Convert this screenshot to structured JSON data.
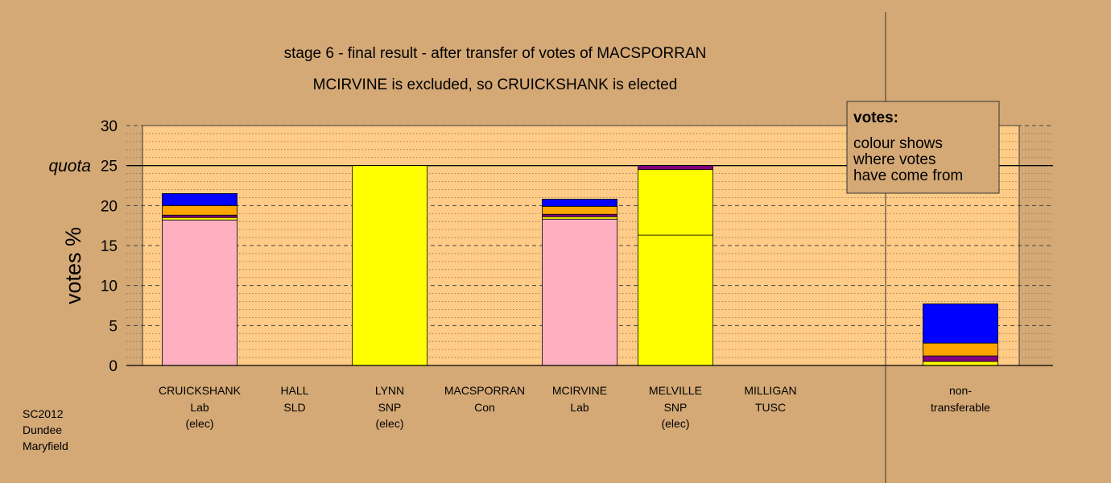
{
  "chart_data": {
    "type": "bar",
    "stacked": true,
    "title": "stage 6 - final result - after transfer of votes of MACSPORRAN",
    "subtitle": "MCIRVINE is excluded, so CRUICKSHANK is elected",
    "ylabel": "votes %",
    "ylim": [
      0,
      30
    ],
    "yticks": [
      "0",
      "5",
      "10",
      "15",
      "20",
      "25",
      "30"
    ],
    "quota": {
      "label": "quota",
      "value": 25
    },
    "grid": true,
    "legend": {
      "title": "votes:",
      "lines": [
        "colour shows",
        "where votes",
        "have come from"
      ],
      "position": "top-right"
    },
    "colors": {
      "Lab": "#ffb0c0",
      "SNP": "#ffff00",
      "SLD": "#ffa500",
      "Con": "#0000ff",
      "TUSC": "#800080",
      "plot_bg": "#ffcc88",
      "page_bg": "#d4a976"
    },
    "candidates": [
      {
        "name": "CRUICKSHANK",
        "party": "Lab",
        "status": "(elec)",
        "segments": [
          {
            "from": "Lab",
            "value": 18.2
          },
          {
            "from": "SNP",
            "value": 0.3
          },
          {
            "from": "TUSC",
            "value": 0.3
          },
          {
            "from": "SLD",
            "value": 1.2
          },
          {
            "from": "Con",
            "value": 1.5
          }
        ]
      },
      {
        "name": "HALL",
        "party": "SLD",
        "status": "",
        "segments": []
      },
      {
        "name": "LYNN",
        "party": "SNP",
        "status": "(elec)",
        "segments": [
          {
            "from": "SNP",
            "value": 25.0
          }
        ]
      },
      {
        "name": "MACSPORRAN",
        "party": "Con",
        "status": "",
        "segments": []
      },
      {
        "name": "MCIRVINE",
        "party": "Lab",
        "status": "",
        "segments": [
          {
            "from": "Lab",
            "value": 18.3
          },
          {
            "from": "SNP",
            "value": 0.3
          },
          {
            "from": "TUSC",
            "value": 0.3
          },
          {
            "from": "SLD",
            "value": 1.0
          },
          {
            "from": "Con",
            "value": 0.9
          }
        ]
      },
      {
        "name": "MELVILLE",
        "party": "SNP",
        "status": "(elec)",
        "segments": [
          {
            "from": "SNP",
            "value": 16.3
          },
          {
            "from": "SNP",
            "value": 8.2
          },
          {
            "from": "TUSC",
            "value": 0.5
          }
        ]
      },
      {
        "name": "MILLIGAN",
        "party": "TUSC",
        "status": "",
        "segments": []
      }
    ],
    "nontransferable": {
      "label_line1": "non-",
      "label_line2": "transferable",
      "segments": [
        {
          "from": "SNP",
          "value": 0.5
        },
        {
          "from": "TUSC",
          "value": 0.7
        },
        {
          "from": "SLD",
          "value": 1.6
        },
        {
          "from": "Con",
          "value": 4.9
        }
      ]
    }
  },
  "corner": {
    "line1": "SC2012",
    "line2": "Dundee",
    "line3": "Maryfield"
  }
}
